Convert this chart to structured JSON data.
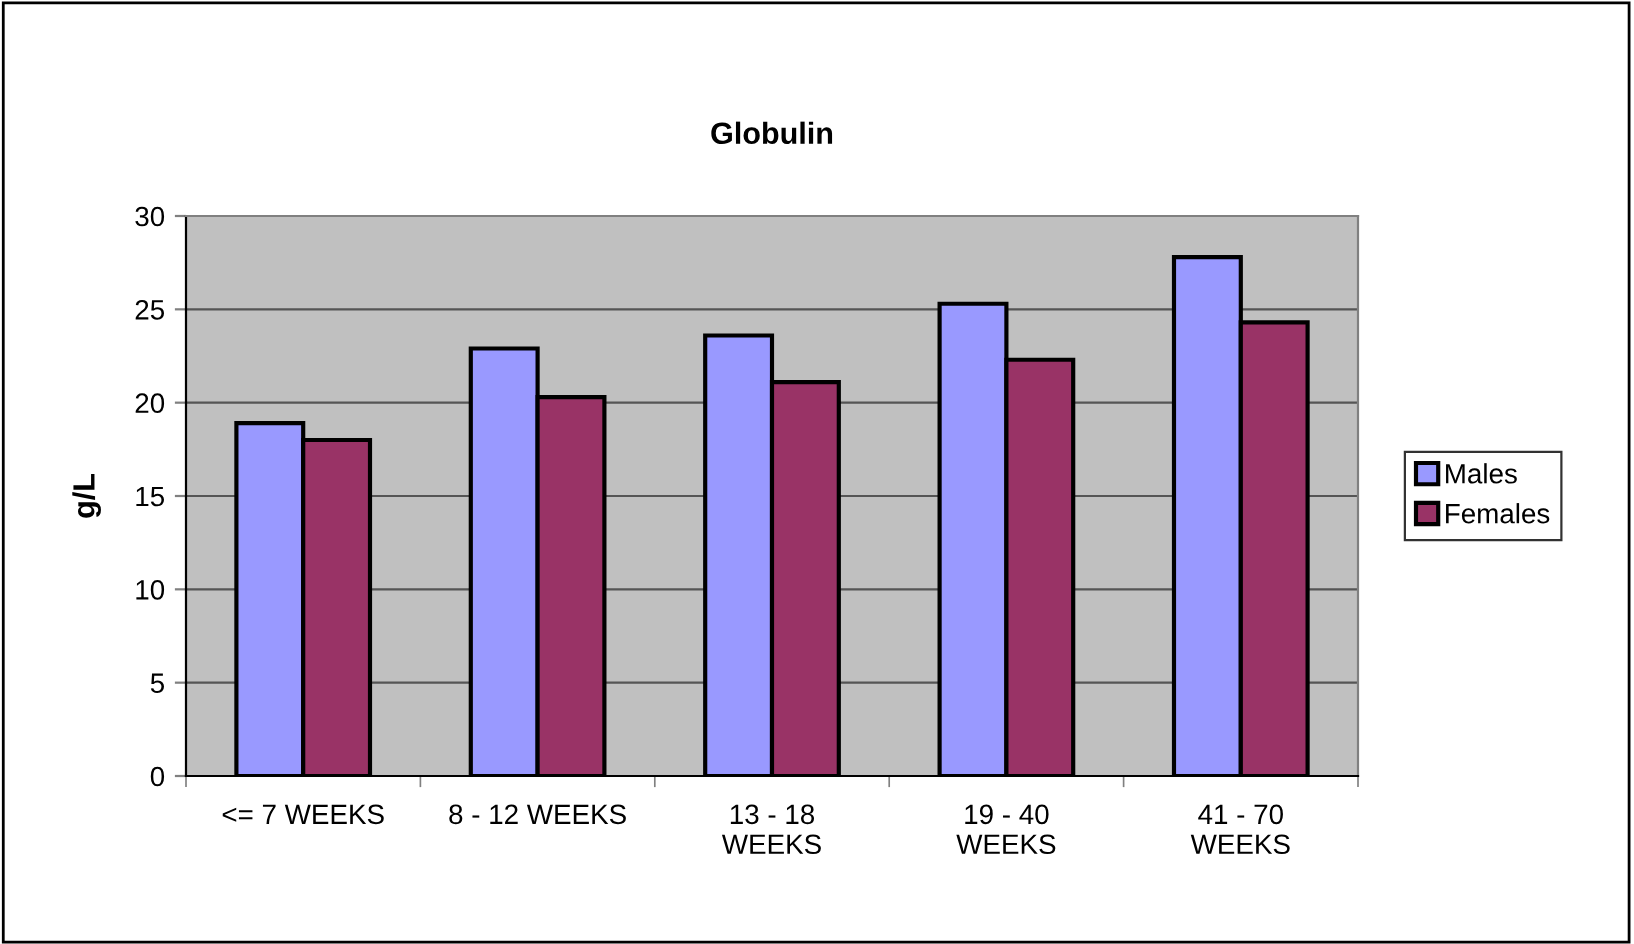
{
  "chart_data": {
    "type": "bar",
    "title": "Globulin",
    "ylabel": "g/L",
    "categories": [
      "<= 7 WEEKS",
      "8 - 12 WEEKS",
      "13 - 18\nWEEKS",
      "19 - 40\nWEEKS",
      "41 - 70\nWEEKS"
    ],
    "series": [
      {
        "name": "Males",
        "color": "#9999ff",
        "values": [
          18.9,
          22.9,
          23.6,
          25.3,
          27.8
        ]
      },
      {
        "name": "Females",
        "color": "#993366",
        "values": [
          18.0,
          20.3,
          21.1,
          22.3,
          24.3
        ]
      }
    ],
    "ylim": [
      0,
      30
    ],
    "yticks": [
      0,
      5,
      10,
      15,
      20,
      25,
      30
    ],
    "grid": "y",
    "legend": "right"
  }
}
